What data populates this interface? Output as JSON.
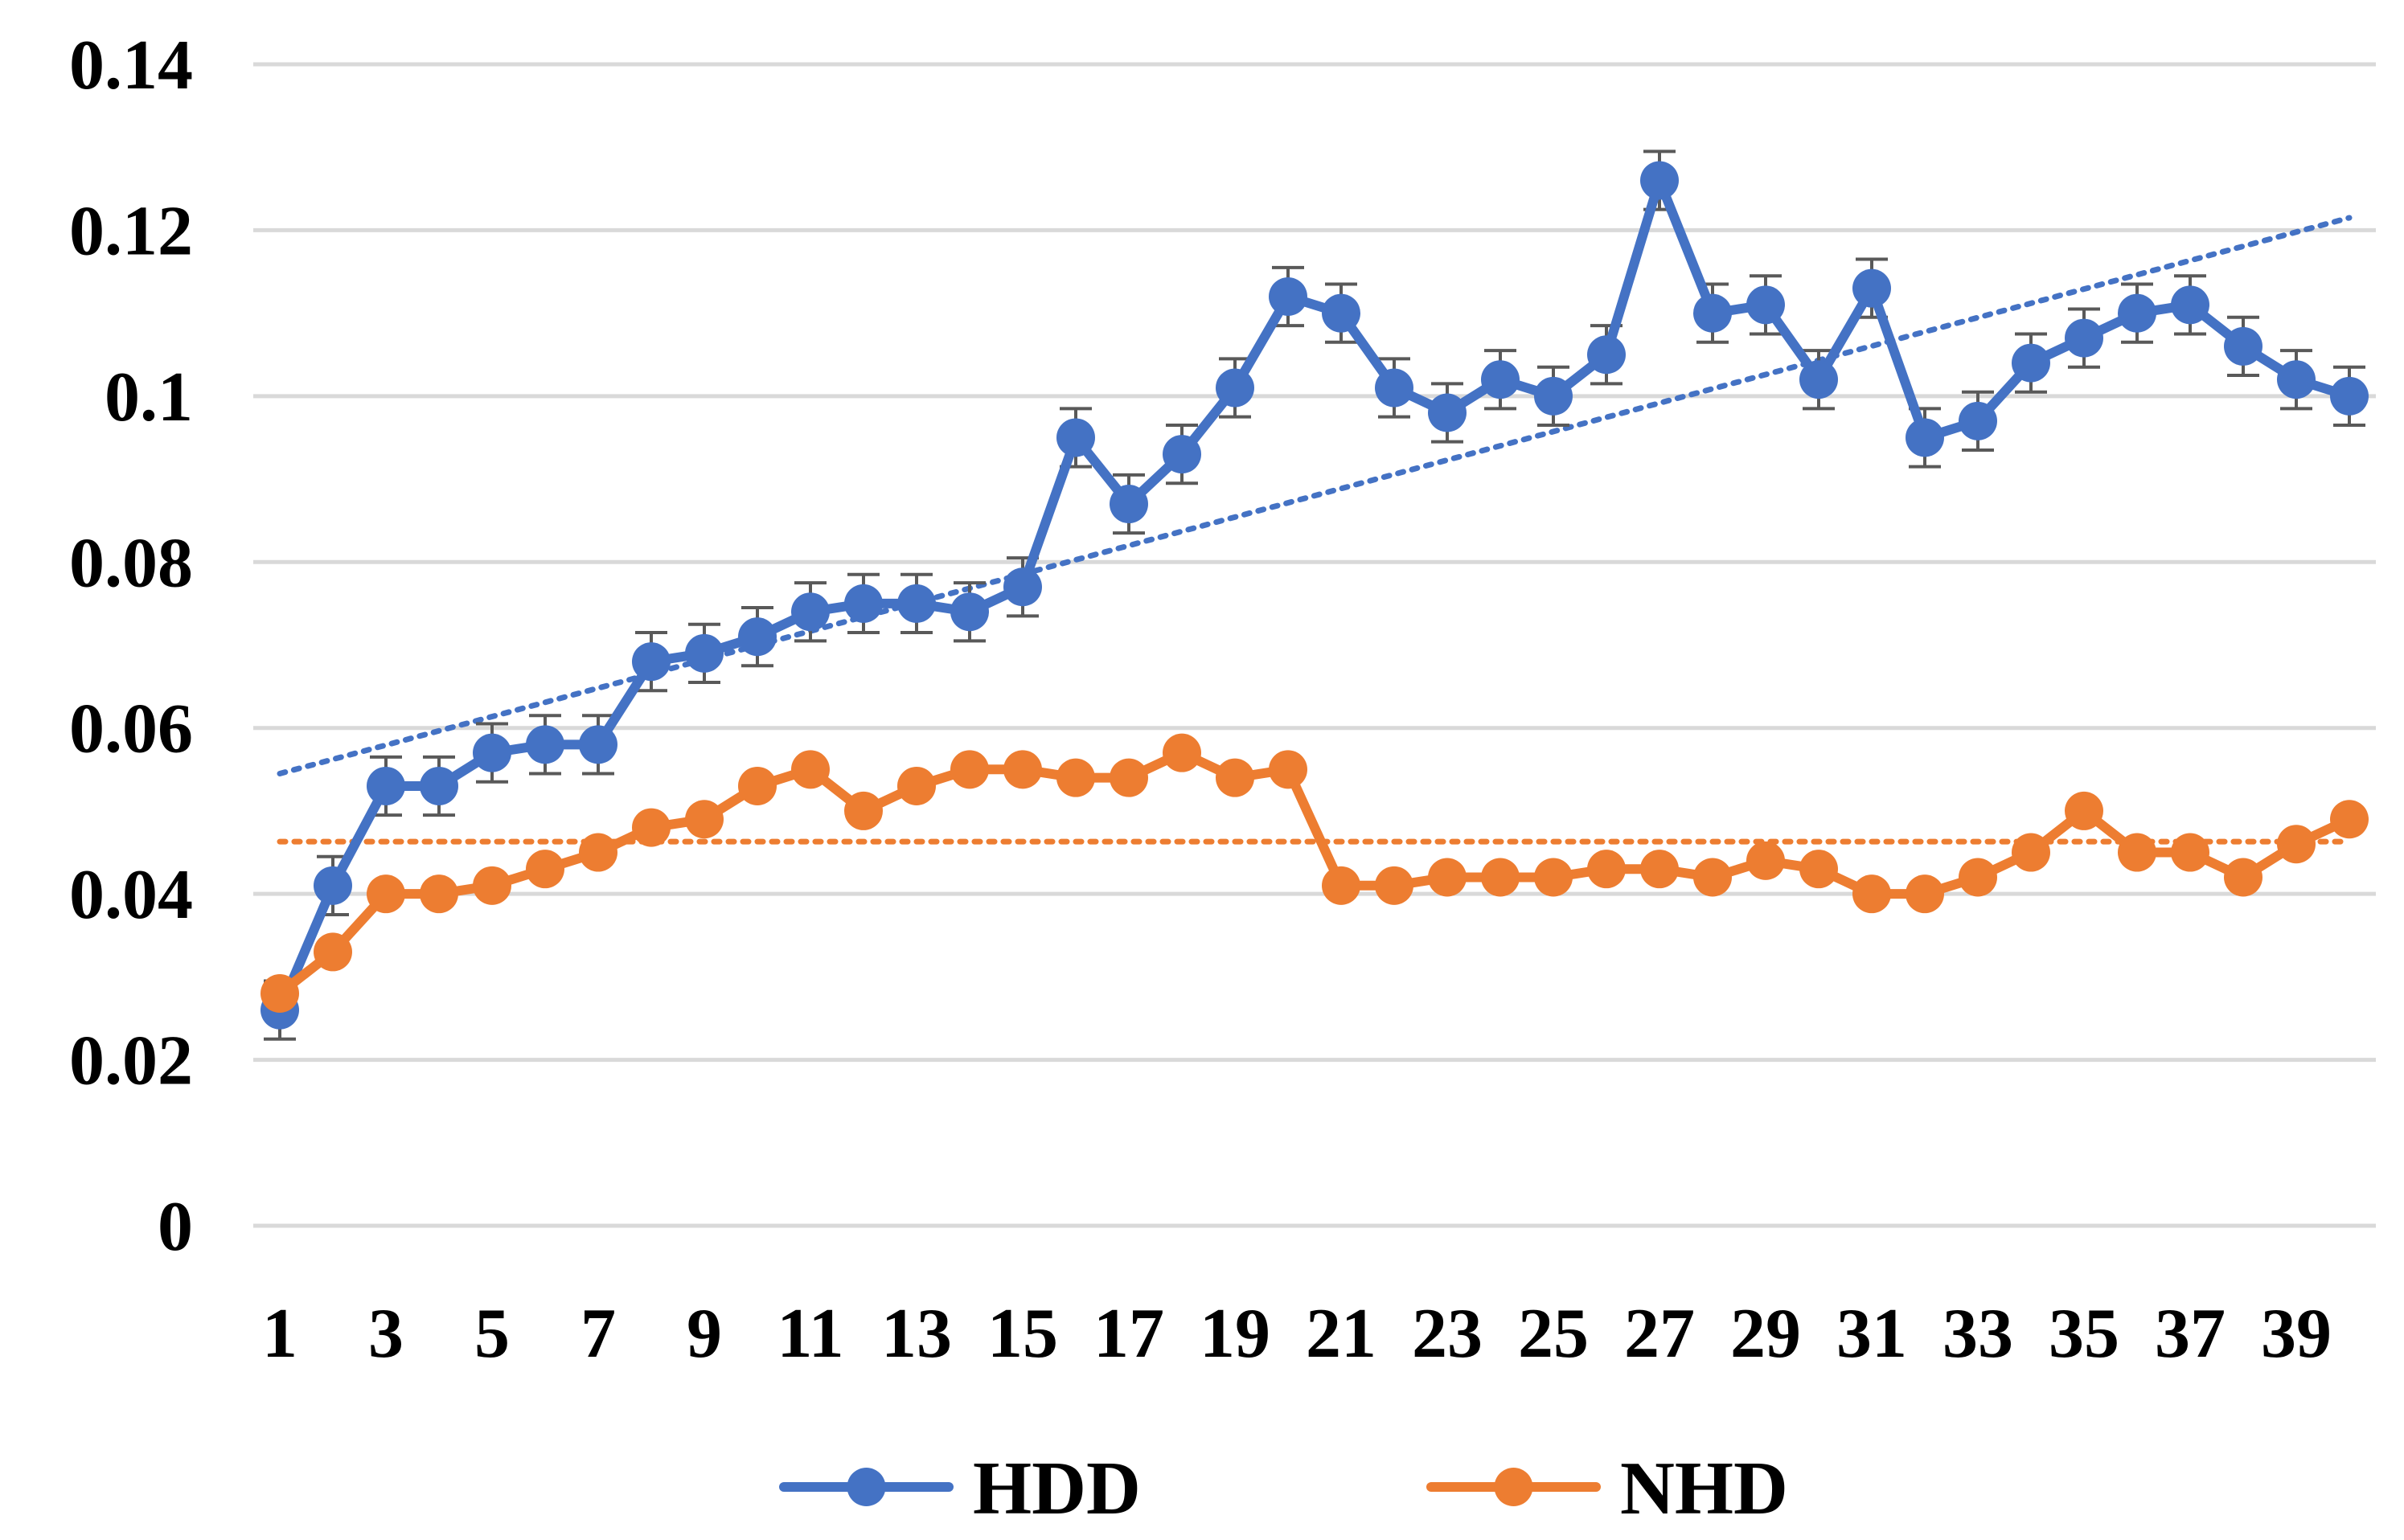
{
  "chart_data": {
    "type": "line",
    "x": [
      1,
      2,
      3,
      4,
      5,
      6,
      7,
      8,
      9,
      10,
      11,
      12,
      13,
      14,
      15,
      16,
      17,
      18,
      19,
      20,
      21,
      22,
      23,
      24,
      25,
      26,
      27,
      28,
      29,
      30,
      31,
      32,
      33,
      34,
      35,
      36,
      37,
      38,
      39,
      40
    ],
    "x_tick_labels": [
      "1",
      "3",
      "5",
      "7",
      "9",
      "11",
      "13",
      "15",
      "17",
      "19",
      "21",
      "23",
      "25",
      "27",
      "29",
      "31",
      "33",
      "35",
      "37",
      "39"
    ],
    "y_tick_labels": [
      "0",
      "0.02",
      "0.04",
      "0.06",
      "0.08",
      "0.1",
      "0.12",
      "0.14"
    ],
    "ylim": [
      0,
      0.14
    ],
    "grid": true,
    "legend_position": "bottom",
    "series": [
      {
        "name": "HDD",
        "color": "#4472C4",
        "values": [
          0.026,
          0.041,
          0.053,
          0.053,
          0.057,
          0.058,
          0.058,
          0.068,
          0.069,
          0.071,
          0.074,
          0.075,
          0.075,
          0.074,
          0.077,
          0.095,
          0.087,
          0.093,
          0.101,
          0.112,
          0.11,
          0.101,
          0.098,
          0.102,
          0.1,
          0.105,
          0.126,
          0.11,
          0.111,
          0.102,
          0.113,
          0.095,
          0.097,
          0.104,
          0.107,
          0.11,
          0.111,
          0.106,
          0.102,
          0.1
        ],
        "error": 0.0035,
        "trendline": {
          "type": "linear",
          "start": 0.0545,
          "end": 0.1215
        }
      },
      {
        "name": "NHD",
        "color": "#ED7D31",
        "values": [
          0.028,
          0.033,
          0.04,
          0.04,
          0.041,
          0.043,
          0.045,
          0.048,
          0.049,
          0.053,
          0.055,
          0.05,
          0.053,
          0.055,
          0.055,
          0.054,
          0.054,
          0.057,
          0.054,
          0.055,
          0.041,
          0.041,
          0.042,
          0.042,
          0.042,
          0.043,
          0.043,
          0.042,
          0.044,
          0.043,
          0.04,
          0.04,
          0.042,
          0.045,
          0.05,
          0.045,
          0.045,
          0.042,
          0.046,
          0.049
        ],
        "trendline": {
          "type": "linear",
          "start": 0.0463,
          "end": 0.0463
        }
      }
    ]
  }
}
